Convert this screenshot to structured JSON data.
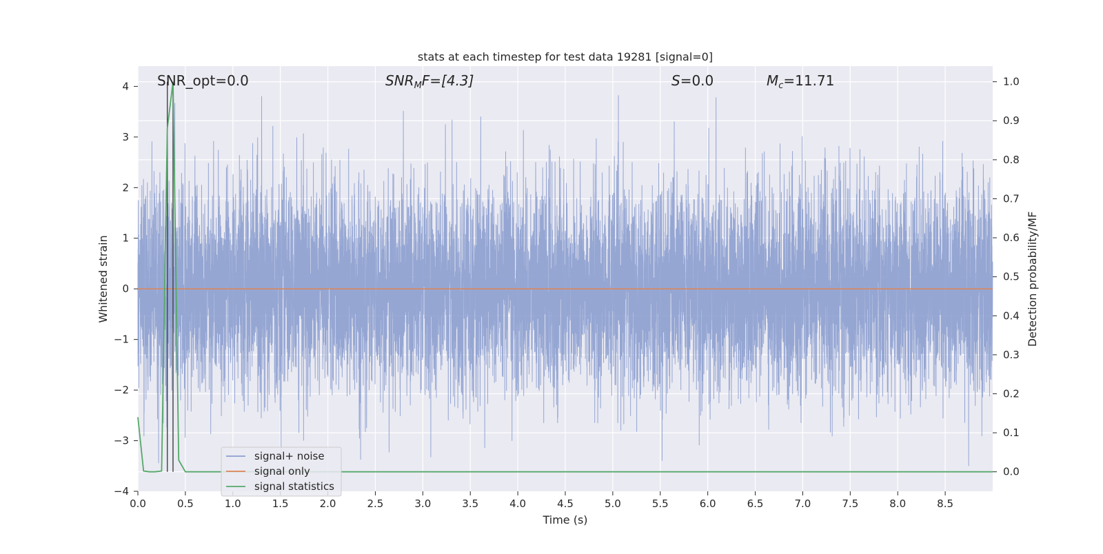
{
  "chart_data": {
    "type": "line",
    "title": "stats at each timestep for test data 19281 [signal=0]",
    "xlabel": "Time (s)",
    "ylabel": "Whitened strain",
    "ylabel_right": "Detection probability/MF",
    "xlim": [
      0.0,
      9.0
    ],
    "ylim": [
      -4.0,
      4.4
    ],
    "ylim_right": [
      -0.05,
      1.04
    ],
    "x_ticks": [
      "0.0",
      "0.5",
      "1.0",
      "1.5",
      "2.0",
      "2.5",
      "3.0",
      "3.5",
      "4.0",
      "4.5",
      "5.0",
      "5.5",
      "6.0",
      "6.5",
      "7.0",
      "7.5",
      "8.0",
      "8.5"
    ],
    "y_ticks": [
      "4",
      "3",
      "2",
      "1",
      "0",
      "−1",
      "−2",
      "−3",
      "−4"
    ],
    "y_right_ticks": [
      "1.0",
      "0.9",
      "0.8",
      "0.7",
      "0.6",
      "0.5",
      "0.4",
      "0.3",
      "0.2",
      "0.1",
      "0.0"
    ],
    "grid": true,
    "legend_position": "lower-left",
    "annotations": {
      "snr_opt": "SNR_opt=0.0",
      "snr_mf_main": "SNR",
      "snr_mf_sub": "M",
      "snr_mf_rest": "F=[4.3]",
      "s_var": "S",
      "s_rest": "=0.0",
      "mc_main": "M",
      "mc_sub": "c",
      "mc_rest": "=11.71"
    },
    "vertical_lines_x": [
      0.31,
      0.37
    ],
    "series": [
      {
        "name": "signal+ noise",
        "color": "#8c9fcf",
        "axis": "left",
        "description_stats": {
          "sigma": 1.0,
          "n_points": 9000
        }
      },
      {
        "name": "signal only",
        "color": "#dd8452",
        "axis": "left",
        "x": [
          0.0,
          9.0
        ],
        "values": [
          0.0,
          0.0
        ]
      },
      {
        "name": "signal statistics",
        "color": "#55a868",
        "axis": "right",
        "x": [
          0.0,
          0.06,
          0.12,
          0.18,
          0.25,
          0.31,
          0.37,
          0.43,
          0.5,
          0.56,
          9.0
        ],
        "values": [
          0.14,
          0.002,
          0.0,
          0.0,
          0.002,
          0.88,
          1.0,
          0.03,
          0.0,
          0.0,
          0.0
        ]
      }
    ]
  }
}
